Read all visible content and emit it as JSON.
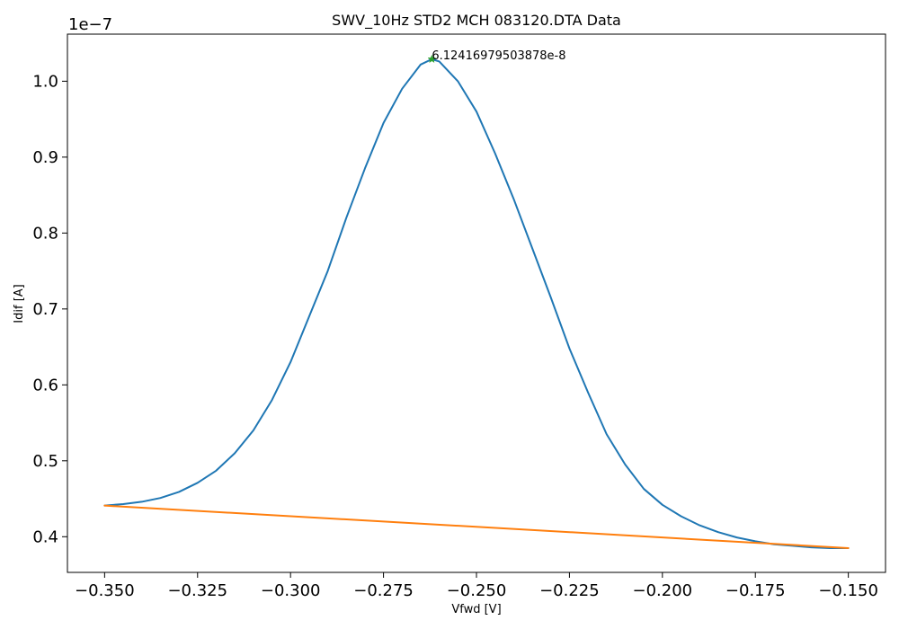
{
  "chart_data": {
    "type": "line",
    "title": "SWV_10Hz STD2 MCH 083120.DTA Data",
    "xlabel": "Vfwd [V]",
    "ylabel": "Idif [A]",
    "y_offset_label": "1e−7",
    "xlim": [
      -0.36,
      -0.14
    ],
    "ylim": [
      0.353,
      1.062
    ],
    "y_scale_factor": 1e-07,
    "x_ticks": [
      -0.35,
      -0.325,
      -0.3,
      -0.275,
      -0.25,
      -0.225,
      -0.2,
      -0.175,
      -0.15
    ],
    "x_tick_labels": [
      "−0.350",
      "−0.325",
      "−0.300",
      "−0.275",
      "−0.250",
      "−0.225",
      "−0.200",
      "−0.175",
      "−0.150"
    ],
    "y_ticks": [
      0.4,
      0.5,
      0.6,
      0.7,
      0.8,
      0.9,
      1.0
    ],
    "y_tick_labels": [
      "0.4",
      "0.5",
      "0.6",
      "0.7",
      "0.8",
      "0.9",
      "1.0"
    ],
    "grid": false,
    "series": [
      {
        "color": "#1f77b4",
        "x": [
          -0.35,
          -0.345,
          -0.34,
          -0.335,
          -0.33,
          -0.325,
          -0.32,
          -0.315,
          -0.31,
          -0.305,
          -0.3,
          -0.295,
          -0.29,
          -0.285,
          -0.28,
          -0.275,
          -0.27,
          -0.265,
          -0.262,
          -0.26,
          -0.255,
          -0.25,
          -0.245,
          -0.24,
          -0.235,
          -0.23,
          -0.225,
          -0.22,
          -0.215,
          -0.21,
          -0.205,
          -0.2,
          -0.195,
          -0.19,
          -0.185,
          -0.18,
          -0.175,
          -0.17,
          -0.165,
          -0.16,
          -0.155,
          -0.15
        ],
        "y": [
          0.441,
          0.443,
          0.446,
          0.451,
          0.459,
          0.471,
          0.487,
          0.51,
          0.54,
          0.58,
          0.63,
          0.69,
          0.75,
          0.82,
          0.885,
          0.945,
          0.99,
          1.022,
          1.029,
          1.026,
          1.0,
          0.96,
          0.905,
          0.845,
          0.78,
          0.715,
          0.648,
          0.59,
          0.535,
          0.495,
          0.463,
          0.442,
          0.427,
          0.415,
          0.406,
          0.399,
          0.394,
          0.39,
          0.388,
          0.386,
          0.385,
          0.385
        ]
      },
      {
        "color": "#ff7f0e",
        "x": [
          -0.35,
          -0.15
        ],
        "y": [
          0.441,
          0.385
        ]
      }
    ],
    "peak": {
      "x": -0.262,
      "y": 1.029,
      "color": "#2ca02c",
      "label": "6.12416979503878e-8"
    }
  }
}
